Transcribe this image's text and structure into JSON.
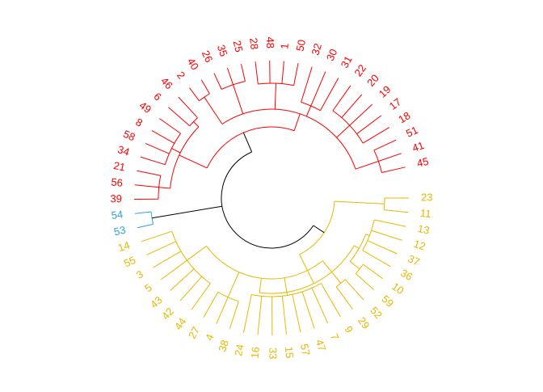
{
  "chart_data": {
    "type": "dendrogram",
    "layout": "circular",
    "colors": {
      "yellow": "#E7B800",
      "blue": "#2E9FDF",
      "red": "#FC0000",
      "root": "#000000"
    },
    "clusters": [
      {
        "color": "#E7B800",
        "leaves": [
          "23",
          "11",
          "13",
          "12",
          "37",
          "36",
          "10",
          "59",
          "52",
          "29",
          "9",
          "7",
          "47",
          "57",
          "15",
          "33",
          "16",
          "24",
          "38",
          "4",
          "27",
          "44",
          "42",
          "43",
          "5",
          "3",
          "55",
          "14"
        ]
      },
      {
        "color": "#2E9FDF",
        "leaves": [
          "53",
          "54"
        ]
      },
      {
        "color": "#FC0000",
        "leaves": [
          "39",
          "56",
          "21",
          "34",
          "58",
          "8",
          "49",
          "6",
          "46",
          "2",
          "40",
          "26",
          "35",
          "25",
          "28",
          "48",
          "1",
          "50",
          "32",
          "30",
          "31",
          "22",
          "20",
          "19",
          "17",
          "18",
          "51",
          "41",
          "45"
        ]
      }
    ]
  }
}
